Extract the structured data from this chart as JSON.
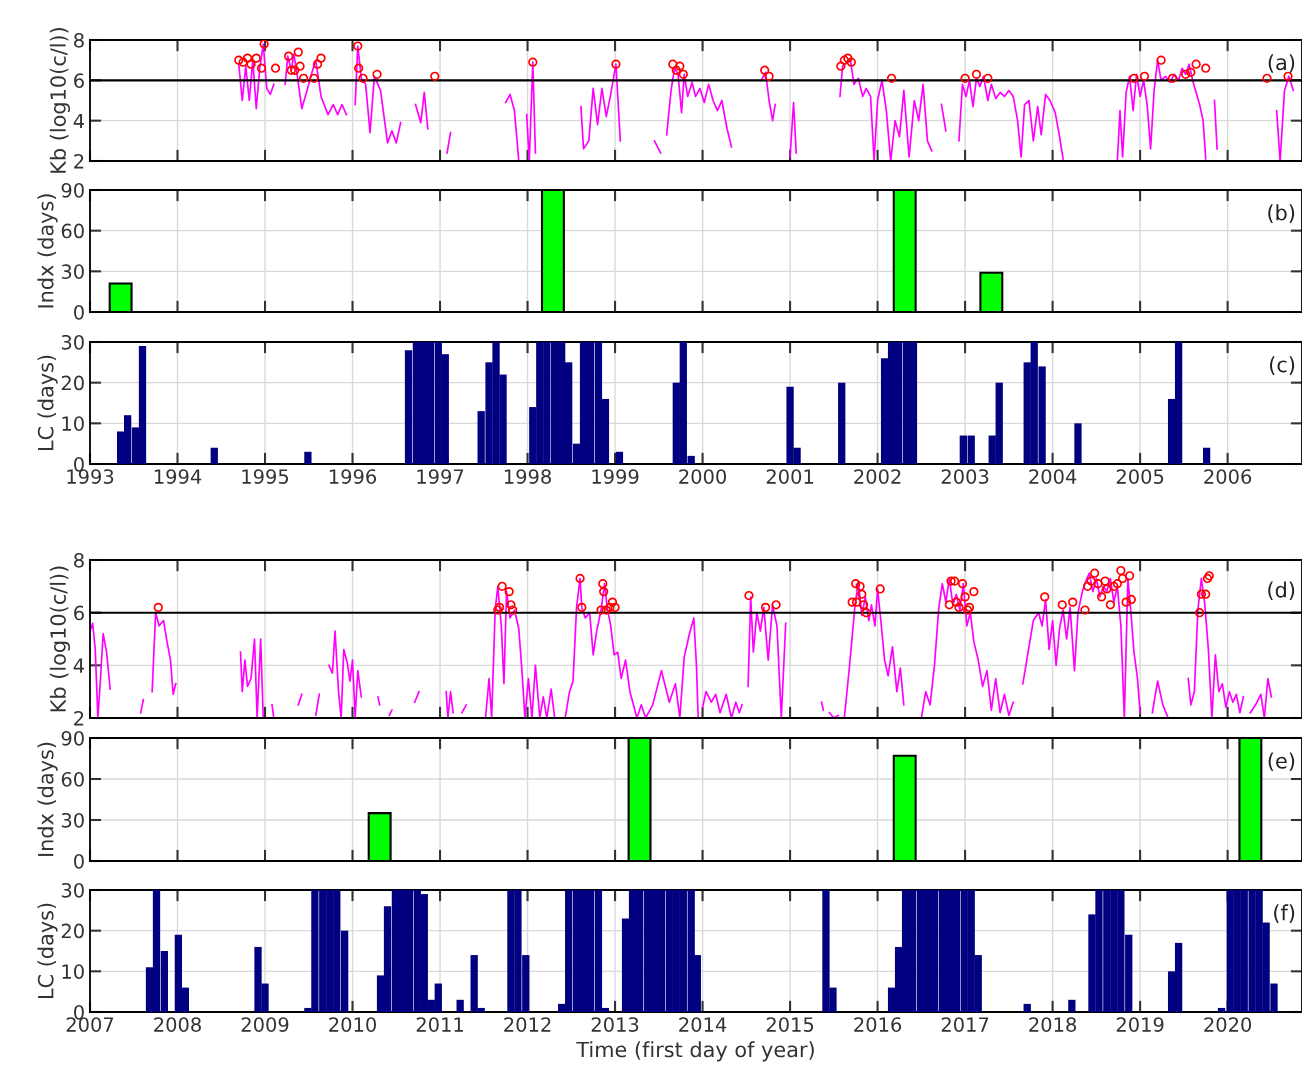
{
  "chart_data": [
    {
      "type": "line",
      "ylabel": "Kb (log10(c/l))",
      "xlim": [
        1993,
        2006.85
      ],
      "ylim": [
        2,
        8
      ],
      "xticks": [
        1993,
        1994,
        1995,
        1996,
        1997,
        1998,
        1999,
        2000,
        2001,
        2002,
        2003,
        2004,
        2005,
        2006
      ],
      "yticks": [
        2,
        4,
        6,
        8
      ],
      "tick_labels": "y",
      "grid": true,
      "annotations": [
        "(a)"
      ],
      "ref_lines": [
        {
          "axis": "y",
          "value": 6,
          "color": "#000000"
        }
      ],
      "series": [
        {
          "type": "line",
          "color": "#ff00ff",
          "x": [
            1994.7,
            1994.74,
            1994.78,
            1994.82,
            1994.86,
            1994.9,
            1994.94,
            1994.98,
            1995.02,
            1995.06,
            1995.1,
            1995.16,
            1995.23,
            1995.26,
            1995.3,
            1995.33,
            1995.37,
            1995.42,
            1995.48,
            1995.53,
            1995.58,
            1995.64,
            1995.72,
            1995.78,
            1995.83,
            1995.88,
            1995.93,
            1995.98,
            1996.03,
            1996.06,
            1996.1,
            1996.15,
            1996.2,
            1996.25,
            1996.32,
            1996.4,
            1996.45,
            1996.5,
            1996.55,
            1996.64,
            1996.72,
            1996.78,
            1996.82,
            1996.86,
            1996.97,
            1997.08,
            1997.12,
            1997.4,
            1997.75,
            1997.8,
            1997.85,
            1997.9,
            1997.95,
            1997.99,
            1998.02,
            1998.06,
            1998.09,
            1998.3,
            1998.61,
            1998.64,
            1998.7,
            1998.75,
            1998.8,
            1998.85,
            1998.9,
            1998.95,
            1999.01,
            1999.06,
            1999.25,
            1999.45,
            1999.52,
            1999.56,
            1999.59,
            1999.64,
            1999.68,
            1999.72,
            1999.76,
            1999.79,
            1999.83,
            1999.88,
            1999.92,
            1999.97,
            2000.02,
            2000.07,
            2000.12,
            2000.17,
            2000.22,
            2000.28,
            2000.33,
            2000.5,
            2000.67,
            2000.72,
            2000.76,
            2000.8,
            2000.83,
            2000.9,
            2001.0,
            2001.04,
            2001.07,
            2001.3,
            2001.57,
            2001.6,
            2001.65,
            2001.69,
            2001.73,
            2001.78,
            2001.83,
            2001.87,
            2001.92,
            2001.96,
            2002.0,
            2002.05,
            2002.1,
            2002.15,
            2002.2,
            2002.25,
            2002.3,
            2002.36,
            2002.42,
            2002.47,
            2002.52,
            2002.57,
            2002.62,
            2002.68,
            2002.73,
            2002.78,
            2002.85,
            2002.93,
            2002.97,
            2003.01,
            2003.05,
            2003.09,
            2003.13,
            2003.17,
            2003.21,
            2003.26,
            2003.3,
            2003.35,
            2003.4,
            2003.45,
            2003.5,
            2003.55,
            2003.6,
            2003.64,
            2003.68,
            2003.73,
            2003.78,
            2003.83,
            2003.87,
            2003.92,
            2003.97,
            2004.03,
            2004.08,
            2004.12,
            2004.4,
            2004.74,
            2004.77,
            2004.8,
            2004.84,
            2004.88,
            2004.92,
            2004.96,
            2005.0,
            2005.04,
            2005.08,
            2005.12,
            2005.16,
            2005.2,
            2005.24,
            2005.29,
            2005.34,
            2005.39,
            2005.44,
            2005.48,
            2005.52,
            2005.56,
            2005.6,
            2005.64,
            2005.68,
            2005.72,
            2005.75,
            2005.8,
            2005.85,
            2005.88,
            2006.2,
            2006.56,
            2006.6,
            2006.65,
            2006.7,
            2006.75
          ],
          "values": [
            6.8,
            5.0,
            6.7,
            5.0,
            7.0,
            4.6,
            6.6,
            7.8,
            5.6,
            5.3,
            5.8,
            null,
            5.8,
            7.2,
            6.5,
            7.3,
            6.2,
            4.6,
            5.5,
            6.3,
            7.0,
            5.2,
            4.3,
            4.8,
            4.3,
            4.8,
            4.3,
            null,
            4.8,
            7.7,
            6.1,
            5.8,
            3.4,
            6.2,
            5.5,
            2.9,
            3.5,
            2.9,
            3.9,
            null,
            4.8,
            3.9,
            5.4,
            3.6,
            null,
            2.4,
            3.4,
            null,
            4.9,
            5.3,
            4.5,
            2.0,
            null,
            4.3,
            2.0,
            6.9,
            2.4,
            null,
            4.7,
            2.6,
            3.0,
            5.6,
            3.8,
            5.6,
            4.2,
            5.3,
            6.8,
            3.0,
            null,
            3.0,
            2.4,
            null,
            3.3,
            5.5,
            6.6,
            6.3,
            4.4,
            6.3,
            5.2,
            5.9,
            5.2,
            5.6,
            4.9,
            5.8,
            5.0,
            4.5,
            5.0,
            3.6,
            2.7,
            null,
            6.0,
            6.4,
            5.0,
            4.0,
            4.8,
            null,
            2.2,
            4.9,
            2.4,
            null,
            5.2,
            6.7,
            6.9,
            7.0,
            5.8,
            6.1,
            5.2,
            5.6,
            5.2,
            2.0,
            5.0,
            6.0,
            4.5,
            2.0,
            4.0,
            3.2,
            5.5,
            2.2,
            5.0,
            4.0,
            5.8,
            3.0,
            2.5,
            null,
            4.8,
            3.5,
            null,
            3.0,
            5.8,
            5.2,
            6.0,
            4.7,
            6.1,
            5.7,
            6.2,
            5.0,
            5.8,
            5.1,
            5.4,
            5.2,
            5.5,
            5.2,
            4.0,
            2.2,
            4.8,
            5.0,
            3.0,
            4.7,
            3.3,
            5.3,
            5.0,
            4.4,
            3.2,
            2.1,
            null,
            2.0,
            4.5,
            2.2,
            5.4,
            6.2,
            4.5,
            6.3,
            5.2,
            6.0,
            4.8,
            2.6,
            5.5,
            7.0,
            6.0,
            6.2,
            5.9,
            6.3,
            6.0,
            6.6,
            6.3,
            6.8,
            6.0,
            5.4,
            4.8,
            4.0,
            2.1,
            null,
            5.0,
            2.6,
            null,
            4.5,
            2.0,
            5.5,
            6.2,
            5.5
          ]
        },
        {
          "type": "scatter",
          "marker": "circle",
          "color": "#ff0000",
          "x": [
            1994.7,
            1994.75,
            1994.8,
            1994.84,
            1994.9,
            1994.96,
            1994.99,
            1995.12,
            1995.27,
            1995.3,
            1995.34,
            1995.38,
            1995.4,
            1995.44,
            1995.56,
            1995.6,
            1995.64,
            1996.06,
            1996.07,
            1996.12,
            1996.28,
            1996.94,
            1998.06,
            1999.01,
            1999.66,
            1999.7,
            1999.74,
            1999.78,
            2000.71,
            2000.76,
            2001.58,
            2001.62,
            2001.66,
            2001.7,
            2002.16,
            2003.0,
            2003.13,
            2003.26,
            2004.93,
            2005.05,
            2005.24,
            2005.37,
            2005.52,
            2005.58,
            2005.64,
            2005.75,
            2006.45,
            2006.69
          ],
          "values": [
            7.0,
            6.9,
            7.1,
            6.8,
            7.1,
            6.6,
            7.8,
            6.6,
            7.2,
            6.5,
            6.5,
            7.4,
            6.7,
            6.1,
            6.1,
            6.8,
            7.1,
            7.7,
            6.6,
            6.1,
            6.3,
            6.2,
            6.9,
            6.8,
            6.8,
            6.5,
            6.7,
            6.3,
            6.5,
            6.2,
            6.7,
            7.0,
            7.1,
            6.9,
            6.1,
            6.1,
            6.3,
            6.1,
            6.1,
            6.2,
            7.0,
            6.1,
            6.3,
            6.4,
            6.8,
            6.6,
            6.1,
            6.2
          ]
        }
      ]
    },
    {
      "type": "bar",
      "ylabel": "Indx (days)",
      "xlim": [
        1993,
        2006.85
      ],
      "ylim": [
        0,
        90
      ],
      "xticks": [
        1993,
        1994,
        1995,
        1996,
        1997,
        1998,
        1999,
        2000,
        2001,
        2002,
        2003,
        2004,
        2005,
        2006
      ],
      "yticks": [
        0,
        30,
        60,
        90
      ],
      "tick_labels": "y",
      "grid": true,
      "annotations": [
        "(b)"
      ],
      "series": [
        {
          "color": "#00ff00",
          "x": [
            1993.35,
            1998.29,
            2002.31,
            2003.3
          ],
          "values": [
            21,
            90,
            90,
            29
          ]
        }
      ]
    },
    {
      "type": "bar",
      "ylabel": "LC (days)",
      "xlim": [
        1993,
        2006.85
      ],
      "ylim": [
        0,
        30
      ],
      "xticks": [
        1993,
        1994,
        1995,
        1996,
        1997,
        1998,
        1999,
        2000,
        2001,
        2002,
        2003,
        2004,
        2005,
        2006
      ],
      "yticks": [
        0,
        10,
        20,
        30
      ],
      "grid": true,
      "annotations": [
        "(c)"
      ],
      "series": [
        {
          "color": "#000080",
          "x": [
            1993.35,
            1993.43,
            1993.52,
            1993.6,
            1994.42,
            1995.49,
            1996.64,
            1996.73,
            1996.81,
            1996.89,
            1996.98,
            1997.06,
            1997.47,
            1997.56,
            1997.64,
            1997.72,
            1998.06,
            1998.14,
            1998.22,
            1998.31,
            1998.39,
            1998.47,
            1998.56,
            1998.64,
            1998.72,
            1998.81,
            1998.89,
            1999.05,
            1999.7,
            1999.78,
            1999.87,
            2001.0,
            2001.08,
            2001.59,
            2002.08,
            2002.16,
            2002.24,
            2002.33,
            2002.41,
            2002.98,
            2003.07,
            2003.31,
            2003.39,
            2003.71,
            2003.79,
            2003.88,
            2004.29,
            2005.36,
            2005.44,
            2005.76
          ],
          "values": [
            8,
            12,
            9,
            29,
            4,
            3,
            28,
            30,
            30,
            30,
            30,
            27,
            13,
            25,
            30,
            22,
            14,
            30,
            30,
            30,
            30,
            25,
            5,
            30,
            30,
            30,
            16,
            3,
            20,
            30,
            2,
            19,
            4,
            20,
            26,
            30,
            30,
            30,
            30,
            7,
            7,
            7,
            20,
            25,
            30,
            24,
            10,
            16,
            30,
            4
          ]
        }
      ]
    },
    {
      "type": "line",
      "ylabel": "Kb (log10(c/l))",
      "xlim": [
        2007,
        2020.85
      ],
      "ylim": [
        2,
        8
      ],
      "xticks": [
        2007,
        2008,
        2009,
        2010,
        2011,
        2012,
        2013,
        2014,
        2015,
        2016,
        2017,
        2018,
        2019,
        2020
      ],
      "yticks": [
        2,
        4,
        6,
        8
      ],
      "tick_labels": "y",
      "grid": true,
      "annotations": [
        "(d)"
      ],
      "ref_lines": [
        {
          "axis": "y",
          "value": 6,
          "color": "#000000"
        }
      ],
      "series": [
        {
          "type": "line",
          "color": "#ff00ff",
          "x": [
            2007.0,
            2007.03,
            2007.06,
            2007.09,
            2007.12,
            2007.15,
            2007.19,
            2007.23,
            2007.4,
            2007.58,
            2007.61,
            2007.66,
            2007.71,
            2007.75,
            2007.79,
            2007.84,
            2007.88,
            2007.92,
            2007.95,
            2007.98,
            2008.4,
            2008.72,
            2008.74,
            2008.77,
            2008.8,
            2008.84,
            2008.88,
            2008.91,
            2008.95,
            2008.98,
            2009.03,
            2009.08,
            2009.1,
            2009.25,
            2009.38,
            2009.42,
            2009.5,
            2009.58,
            2009.62,
            2009.68,
            2009.73,
            2009.77,
            2009.8,
            2009.84,
            2009.87,
            2009.9,
            2009.94,
            2009.97,
            2010.0,
            2010.03,
            2010.06,
            2010.1,
            2010.2,
            2010.29,
            2010.31,
            2010.36,
            2010.42,
            2010.45,
            2010.6,
            2010.71,
            2010.76,
            2010.9,
            2011.07,
            2011.09,
            2011.12,
            2011.15,
            2011.2,
            2011.25,
            2011.3,
            2011.45,
            2011.52,
            2011.56,
            2011.59,
            2011.63,
            2011.66,
            2011.7,
            2011.73,
            2011.76,
            2011.8,
            2011.85,
            2011.9,
            2011.94,
            2011.97,
            2012.01,
            2012.05,
            2012.09,
            2012.14,
            2012.18,
            2012.22,
            2012.27,
            2012.31,
            2012.35,
            2012.43,
            2012.48,
            2012.52,
            2012.56,
            2012.6,
            2012.62,
            2012.66,
            2012.71,
            2012.75,
            2012.79,
            2012.84,
            2012.88,
            2012.91,
            2012.95,
            2012.99,
            2013.03,
            2013.07,
            2013.12,
            2013.17,
            2013.21,
            2013.25,
            2013.3,
            2013.35,
            2013.43,
            2013.53,
            2013.62,
            2013.69,
            2013.74,
            2013.79,
            2013.85,
            2013.9,
            2013.93,
            2013.95,
            2013.98,
            2014.0,
            2014.04,
            2014.1,
            2014.15,
            2014.2,
            2014.27,
            2014.33,
            2014.38,
            2014.42,
            2014.45,
            2014.49,
            2014.52,
            2014.55,
            2014.58,
            2014.62,
            2014.66,
            2014.7,
            2014.75,
            2014.8,
            2014.85,
            2014.9,
            2014.95,
            2015.15,
            2015.36,
            2015.38,
            2015.42,
            2015.45,
            2015.5,
            2015.55,
            2015.58,
            2015.62,
            2015.68,
            2015.74,
            2015.78,
            2015.82,
            2015.86,
            2015.9,
            2015.93,
            2015.97,
            2016.0,
            2016.04,
            2016.08,
            2016.12,
            2016.17,
            2016.22,
            2016.26,
            2016.3,
            2016.4,
            2016.5,
            2016.55,
            2016.6,
            2016.65,
            2016.7,
            2016.74,
            2016.78,
            2016.82,
            2016.86,
            2016.9,
            2016.94,
            2016.98,
            2017.02,
            2017.06,
            2017.1,
            2017.15,
            2017.2,
            2017.25,
            2017.3,
            2017.35,
            2017.4,
            2017.45,
            2017.5,
            2017.55,
            2017.6,
            2017.66,
            2017.72,
            2017.78,
            2017.84,
            2017.88,
            2017.92,
            2017.96,
            2018.0,
            2018.04,
            2018.08,
            2018.12,
            2018.16,
            2018.2,
            2018.25,
            2018.29,
            2018.34,
            2018.38,
            2018.42,
            2018.46,
            2018.5,
            2018.54,
            2018.58,
            2018.62,
            2018.66,
            2018.7,
            2018.74,
            2018.78,
            2018.82,
            2018.86,
            2018.89,
            2018.93,
            2018.97,
            2019.0,
            2019.07,
            2019.14,
            2019.2,
            2019.26,
            2019.32,
            2019.45,
            2019.55,
            2019.58,
            2019.62,
            2019.66,
            2019.7,
            2019.74,
            2019.78,
            2019.82,
            2019.86,
            2019.9,
            2019.94,
            2019.98,
            2020.02,
            2020.06,
            2020.1,
            2020.14,
            2020.18,
            2020.22,
            2020.26,
            2020.32,
            2020.38,
            2020.42,
            2020.46,
            2020.5
          ],
          "values": [
            5.3,
            5.6,
            4.6,
            2.0,
            3.5,
            5.2,
            4.5,
            3.1,
            null,
            2.2,
            2.7,
            null,
            3.0,
            6.0,
            5.5,
            5.7,
            4.9,
            4.2,
            2.9,
            3.3,
            null,
            4.5,
            3.0,
            4.2,
            3.2,
            3.5,
            5.0,
            2.0,
            5.0,
            2.0,
            null,
            2.5,
            2.0,
            null,
            2.5,
            2.9,
            null,
            2.1,
            2.9,
            null,
            4.0,
            3.7,
            5.3,
            3.0,
            2.0,
            4.6,
            4.1,
            3.4,
            4.2,
            2.0,
            3.8,
            2.8,
            null,
            2.8,
            2.5,
            null,
            2.1,
            2.3,
            null,
            2.6,
            3.0,
            null,
            3.0,
            2.0,
            3.0,
            2.2,
            null,
            2.2,
            2.5,
            null,
            2.0,
            3.5,
            2.0,
            6.1,
            7.0,
            5.5,
            3.3,
            6.8,
            5.8,
            6.1,
            5.4,
            3.6,
            2.0,
            3.5,
            2.0,
            4.0,
            2.0,
            2.8,
            2.0,
            3.1,
            2.0,
            2.0,
            2.0,
            3.0,
            3.4,
            6.2,
            7.3,
            6.2,
            5.8,
            6.0,
            4.4,
            5.3,
            6.1,
            7.1,
            6.2,
            5.5,
            4.4,
            4.5,
            3.5,
            4.2,
            3.0,
            2.5,
            2.0,
            2.5,
            2.0,
            2.5,
            3.8,
            2.6,
            3.3,
            2.0,
            4.3,
            5.2,
            5.8,
            4.0,
            2.0,
            null,
            2.4,
            3.0,
            2.6,
            2.9,
            2.2,
            2.9,
            2.0,
            2.6,
            2.2,
            2.5,
            null,
            3.2,
            6.6,
            4.5,
            6.0,
            5.3,
            6.2,
            4.2,
            6.3,
            5.5,
            2.0,
            5.6,
            null,
            2.6,
            2.3,
            null,
            2.2,
            2.0,
            2.1,
            null,
            2.0,
            4.0,
            6.2,
            7.2,
            5.9,
            6.6,
            5.7,
            6.3,
            5.5,
            6.9,
            5.6,
            4.2,
            3.6,
            4.7,
            3.0,
            3.9,
            2.5,
            null,
            2.0,
            3.0,
            2.5,
            4.0,
            6.2,
            7.1,
            6.4,
            7.3,
            6.3,
            6.7,
            6.1,
            7.1,
            5.5,
            6.0,
            4.9,
            4.2,
            3.2,
            3.8,
            2.3,
            3.5,
            2.2,
            2.9,
            2.1,
            2.6,
            null,
            3.3,
            4.5,
            5.7,
            6.0,
            5.5,
            6.5,
            4.6,
            5.7,
            4.0,
            5.4,
            6.1,
            5.0,
            6.2,
            3.8,
            6.0,
            6.8,
            7.2,
            7.5,
            6.8,
            7.3,
            6.6,
            7.0,
            6.8,
            7.3,
            6.4,
            7.0,
            5.5,
            2.0,
            7.3,
            6.2,
            4.5,
            3.5,
            2.2,
            null,
            2.2,
            3.4,
            2.5,
            2.0,
            null,
            3.5,
            2.5,
            3.0,
            6.1,
            7.3,
            6.3,
            4.6,
            2.0,
            4.4,
            3.0,
            3.3,
            2.4,
            3.0,
            2.6,
            2.9,
            2.2,
            2.8,
            null,
            2.2,
            2.5,
            2.9,
            2.0,
            3.5,
            2.8
          ]
        },
        {
          "type": "scatter",
          "marker": "circle",
          "color": "#ff0000",
          "x": [
            2007.78,
            2011.66,
            2011.68,
            2011.71,
            2011.79,
            2011.81,
            2011.83,
            2012.6,
            2012.62,
            2012.84,
            2012.86,
            2012.87,
            2012.9,
            2012.94,
            2012.97,
            2013.0,
            2014.53,
            2014.72,
            2014.84,
            2015.71,
            2015.75,
            2015.76,
            2015.8,
            2015.82,
            2015.84,
            2015.87,
            2016.03,
            2016.82,
            2016.84,
            2016.88,
            2016.9,
            2016.93,
            2016.97,
            2017.0,
            2017.03,
            2017.05,
            2017.1,
            2017.91,
            2018.11,
            2018.23,
            2018.37,
            2018.4,
            2018.44,
            2018.48,
            2018.52,
            2018.56,
            2018.6,
            2018.62,
            2018.66,
            2018.7,
            2018.74,
            2018.78,
            2018.8,
            2018.84,
            2018.88,
            2018.9,
            2019.68,
            2019.7,
            2019.75,
            2019.77,
            2019.79
          ],
          "values": [
            6.2,
            6.1,
            6.2,
            7.0,
            6.8,
            6.3,
            6.1,
            7.3,
            6.2,
            6.1,
            7.1,
            6.8,
            6.1,
            6.2,
            6.4,
            6.2,
            6.65,
            6.2,
            6.3,
            6.4,
            7.1,
            6.4,
            7.0,
            6.7,
            6.3,
            6.0,
            6.9,
            6.3,
            7.2,
            7.2,
            6.4,
            6.2,
            7.1,
            6.6,
            6.1,
            6.2,
            6.8,
            6.6,
            6.3,
            6.4,
            6.1,
            7.0,
            7.2,
            7.5,
            7.1,
            6.6,
            7.2,
            6.9,
            6.3,
            7.0,
            7.1,
            7.6,
            7.3,
            6.4,
            7.4,
            6.5,
            6.0,
            6.7,
            6.7,
            7.3,
            7.4
          ]
        }
      ]
    },
    {
      "type": "bar",
      "ylabel": "Indx (days)",
      "xlim": [
        2007,
        2020.85
      ],
      "ylim": [
        0,
        90
      ],
      "xticks": [
        2007,
        2008,
        2009,
        2010,
        2011,
        2012,
        2013,
        2014,
        2015,
        2016,
        2017,
        2018,
        2019,
        2020
      ],
      "yticks": [
        0,
        30,
        60,
        90
      ],
      "tick_labels": "y",
      "grid": true,
      "annotations": [
        "(e)"
      ],
      "series": [
        {
          "color": "#00ff00",
          "x": [
            2010.31,
            2013.28,
            2016.31,
            2020.26
          ],
          "values": [
            35,
            90,
            77,
            90
          ]
        }
      ]
    },
    {
      "type": "bar",
      "xlabel": "Time (first day of year)",
      "ylabel": "LC (days)",
      "xlim": [
        2007,
        2020.85
      ],
      "ylim": [
        0,
        30
      ],
      "xticks": [
        2007,
        2008,
        2009,
        2010,
        2011,
        2012,
        2013,
        2014,
        2015,
        2016,
        2017,
        2018,
        2019,
        2020
      ],
      "yticks": [
        0,
        10,
        20,
        30
      ],
      "grid": true,
      "annotations": [
        "(f)"
      ],
      "series": [
        {
          "color": "#000080",
          "x": [
            2007.68,
            2007.76,
            2007.85,
            2008.01,
            2008.09,
            2008.92,
            2009.0,
            2009.49,
            2009.57,
            2009.66,
            2009.74,
            2009.82,
            2009.91,
            2010.32,
            2010.4,
            2010.49,
            2010.57,
            2010.65,
            2010.74,
            2010.82,
            2010.9,
            2010.98,
            2011.23,
            2011.39,
            2011.47,
            2011.81,
            2011.89,
            2011.98,
            2012.39,
            2012.47,
            2012.56,
            2012.64,
            2012.72,
            2012.81,
            2012.89,
            2013.12,
            2013.2,
            2013.28,
            2013.37,
            2013.45,
            2013.53,
            2013.62,
            2013.7,
            2013.78,
            2013.87,
            2013.94,
            2015.41,
            2015.49,
            2016.16,
            2016.24,
            2016.32,
            2016.4,
            2016.49,
            2016.57,
            2016.65,
            2016.74,
            2016.82,
            2016.9,
            2016.99,
            2017.07,
            2017.15,
            2017.71,
            2018.22,
            2018.45,
            2018.53,
            2018.62,
            2018.7,
            2018.78,
            2018.87,
            2019.36,
            2019.44,
            2019.93,
            2020.03,
            2020.11,
            2020.19,
            2020.28,
            2020.36,
            2020.44,
            2020.53
          ],
          "values": [
            11,
            30,
            15,
            19,
            6,
            16,
            7,
            1,
            30,
            30,
            30,
            30,
            20,
            9,
            26,
            30,
            30,
            30,
            30,
            29,
            3,
            7,
            3,
            14,
            1,
            30,
            30,
            14,
            2,
            30,
            30,
            30,
            30,
            30,
            1,
            23,
            30,
            30,
            30,
            30,
            30,
            30,
            30,
            30,
            30,
            14,
            30,
            6,
            6,
            16,
            30,
            30,
            30,
            30,
            30,
            30,
            30,
            30,
            30,
            30,
            14,
            2,
            3,
            24,
            30,
            30,
            30,
            30,
            19,
            10,
            17,
            1,
            30,
            30,
            30,
            30,
            30,
            22,
            7
          ]
        }
      ]
    }
  ]
}
